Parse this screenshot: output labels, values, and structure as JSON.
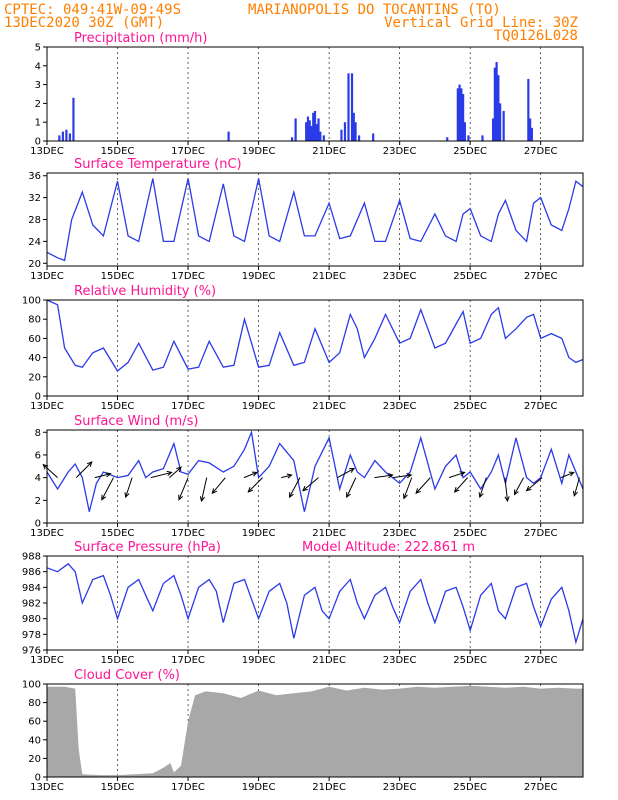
{
  "header": {
    "line1_left": "CPTEC:   049:41W-09:49S",
    "line1_right": "MARIANOPOLIS DO TOCANTINS (TO)",
    "line2_left": "13DEC2020 30Z (GMT)",
    "line2_right": "Vertical Grid Line: 30Z",
    "line3_right": "TQ0126L028",
    "text_color": "#ff7f00"
  },
  "colors": {
    "series": "#2b3be8",
    "cloud": "#a8a8a8",
    "title": "#ff1493"
  },
  "chart_data": [
    {
      "type": "bar",
      "title": "Precipitation (mm/h)",
      "ylim": [
        0,
        5
      ],
      "yticks": [
        "0",
        "1",
        "2",
        "3",
        "4",
        "5"
      ],
      "x_labels": [
        "13DEC",
        "15DEC",
        "17DEC",
        "19DEC",
        "21DEC",
        "23DEC",
        "25DEC",
        "27DEC"
      ],
      "x_domain_days": [
        0,
        15.2
      ],
      "x": [
        0.35,
        0.45,
        0.55,
        0.65,
        0.75,
        5.15,
        6.95,
        7.05,
        7.35,
        7.4,
        7.45,
        7.5,
        7.55,
        7.6,
        7.65,
        7.7,
        7.75,
        7.85,
        8.35,
        8.45,
        8.55,
        8.65,
        8.7,
        8.75,
        8.85,
        9.25,
        11.35,
        11.65,
        11.7,
        11.75,
        11.8,
        11.85,
        11.95,
        12.35,
        12.65,
        12.7,
        12.75,
        12.8,
        12.85,
        12.95,
        13.65,
        13.7,
        13.75
      ],
      "values": [
        0.3,
        0.5,
        0.6,
        0.4,
        2.3,
        0.5,
        0.2,
        1.2,
        1.0,
        1.3,
        1.1,
        0.8,
        1.5,
        1.6,
        0.9,
        1.2,
        0.5,
        0.3,
        0.6,
        1.0,
        3.6,
        3.6,
        1.5,
        1.0,
        0.3,
        0.4,
        0.2,
        2.8,
        3.0,
        2.8,
        2.5,
        1.0,
        0.3,
        0.3,
        1.2,
        3.9,
        4.2,
        3.5,
        2.0,
        1.6,
        3.3,
        1.2,
        0.7
      ]
    },
    {
      "type": "line",
      "title": "Surface Temperature (nC)",
      "ylim": [
        19.5,
        36.5
      ],
      "yticks": [
        "20",
        "24",
        "28",
        "32",
        "36"
      ],
      "x_labels": [
        "13DEC",
        "15DEC",
        "17DEC",
        "19DEC",
        "21DEC",
        "23DEC",
        "25DEC",
        "27DEC"
      ],
      "x_domain_days": [
        0,
        15.2
      ],
      "series": [
        {
          "x": [
            0,
            0.3,
            0.5,
            0.7,
            1.0,
            1.3,
            1.6,
            2.0,
            2.3,
            2.6,
            3.0,
            3.3,
            3.6,
            4.0,
            4.3,
            4.6,
            5.0,
            5.3,
            5.6,
            6.0,
            6.3,
            6.6,
            7.0,
            7.3,
            7.6,
            8.0,
            8.3,
            8.6,
            9.0,
            9.3,
            9.6,
            10.0,
            10.3,
            10.6,
            11.0,
            11.3,
            11.6,
            11.8,
            12.0,
            12.3,
            12.6,
            12.8,
            13.0,
            13.3,
            13.6,
            13.8,
            14.0,
            14.3,
            14.6,
            14.8,
            15.0,
            15.2
          ],
          "values": [
            22,
            21,
            20.5,
            28,
            33,
            27,
            25,
            35,
            25,
            24,
            35.5,
            24,
            24,
            35.5,
            25,
            24,
            34.5,
            25,
            24,
            35.5,
            25,
            24,
            33,
            25,
            25,
            31,
            24.5,
            25,
            31,
            24,
            24,
            31.5,
            24.5,
            24,
            29,
            25,
            24,
            29,
            30,
            25,
            24,
            29,
            31.5,
            26,
            24,
            31,
            32,
            27,
            26,
            30,
            35,
            34
          ]
        }
      ]
    },
    {
      "type": "line",
      "title": "Relative Humidity (%)",
      "ylim": [
        0,
        100
      ],
      "yticks": [
        "0",
        "20",
        "40",
        "60",
        "80",
        "100"
      ],
      "x_labels": [
        "13DEC",
        "15DEC",
        "17DEC",
        "19DEC",
        "21DEC",
        "23DEC",
        "25DEC",
        "27DEC"
      ],
      "x_domain_days": [
        0,
        15.2
      ],
      "series": [
        {
          "x": [
            0,
            0.3,
            0.5,
            0.8,
            1.0,
            1.3,
            1.6,
            2.0,
            2.3,
            2.6,
            3.0,
            3.3,
            3.6,
            4.0,
            4.3,
            4.6,
            5.0,
            5.3,
            5.6,
            6.0,
            6.3,
            6.6,
            7.0,
            7.3,
            7.6,
            8.0,
            8.3,
            8.6,
            8.8,
            9.0,
            9.3,
            9.6,
            10.0,
            10.3,
            10.6,
            11.0,
            11.3,
            11.6,
            11.8,
            12.0,
            12.3,
            12.6,
            12.8,
            13.0,
            13.3,
            13.6,
            13.8,
            14.0,
            14.3,
            14.6,
            14.8,
            15.0,
            15.2
          ],
          "values": [
            100,
            95,
            50,
            32,
            30,
            45,
            50,
            26,
            35,
            55,
            27,
            30,
            57,
            28,
            30,
            57,
            30,
            32,
            80,
            30,
            32,
            66,
            32,
            35,
            70,
            35,
            45,
            85,
            70,
            40,
            60,
            85,
            55,
            60,
            90,
            50,
            55,
            75,
            88,
            55,
            60,
            85,
            92,
            60,
            70,
            82,
            85,
            60,
            65,
            60,
            40,
            35,
            38
          ]
        }
      ]
    },
    {
      "type": "line",
      "title": "Surface Wind (m/s)",
      "ylim": [
        0,
        8.2
      ],
      "yticks": [
        "0",
        "2",
        "4",
        "6",
        "8"
      ],
      "x_labels": [
        "13DEC",
        "15DEC",
        "17DEC",
        "19DEC",
        "21DEC",
        "23DEC",
        "25DEC",
        "27DEC"
      ],
      "x_domain_days": [
        0,
        15.2
      ],
      "series": [
        {
          "x": [
            0,
            0.3,
            0.6,
            0.8,
            1.0,
            1.2,
            1.4,
            1.6,
            2.0,
            2.3,
            2.6,
            2.8,
            3.0,
            3.3,
            3.6,
            3.8,
            4.0,
            4.3,
            4.6,
            5.0,
            5.3,
            5.6,
            5.8,
            6.0,
            6.3,
            6.6,
            7.0,
            7.3,
            7.6,
            8.0,
            8.3,
            8.6,
            8.8,
            9.0,
            9.3,
            9.6,
            10.0,
            10.3,
            10.6,
            11.0,
            11.3,
            11.6,
            11.8,
            12.0,
            12.3,
            12.6,
            12.8,
            13.0,
            13.3,
            13.6,
            13.8,
            14.0,
            14.3,
            14.6,
            14.8,
            15.0,
            15.2
          ],
          "values": [
            4.5,
            3.0,
            4.5,
            5.2,
            4.0,
            1.0,
            3.5,
            4.5,
            4.0,
            4.2,
            5.5,
            4.0,
            4.5,
            4.8,
            7.0,
            4.5,
            4.3,
            5.5,
            5.3,
            4.5,
            5.0,
            6.5,
            8.0,
            4.0,
            5.0,
            7.0,
            5.5,
            1.0,
            5.0,
            7.5,
            3.0,
            6.0,
            4.5,
            4.0,
            5.5,
            4.5,
            3.5,
            4.5,
            7.5,
            3.0,
            5.0,
            6.0,
            4.0,
            4.5,
            3.0,
            4.5,
            6.0,
            3.5,
            7.5,
            4.0,
            3.5,
            4.0,
            6.5,
            3.5,
            6.0,
            4.5,
            3.0
          ]
        }
      ],
      "wind_vectors_uv": [
        [
          -0.55,
          0.5
        ],
        [
          0.6,
          0.6
        ],
        [
          0.6,
          0.15
        ],
        [
          -0.45,
          -0.85
        ],
        [
          -0.25,
          -0.75
        ],
        [
          0.8,
          0.2
        ],
        [
          0.45,
          0.4
        ],
        [
          -0.35,
          -0.85
        ],
        [
          -0.2,
          -0.9
        ],
        [
          -0.5,
          -0.6
        ],
        [
          0.5,
          0.2
        ],
        [
          -0.55,
          -0.55
        ],
        [
          0.4,
          0.1
        ],
        [
          -0.4,
          -0.75
        ],
        [
          -0.6,
          -0.5
        ],
        [
          0.65,
          0.35
        ],
        [
          -0.35,
          -0.75
        ],
        [
          0.7,
          0.1
        ],
        [
          0.7,
          0.1
        ],
        [
          -0.3,
          -0.8
        ],
        [
          -0.55,
          -0.6
        ],
        [
          0.6,
          0.2
        ],
        [
          -0.5,
          -0.55
        ],
        [
          -0.25,
          -0.75
        ],
        [
          0.1,
          -0.9
        ],
        [
          -0.35,
          -0.65
        ],
        [
          -0.6,
          -0.5
        ],
        [
          0.5,
          0.2
        ],
        [
          -0.2,
          -0.7
        ]
      ]
    },
    {
      "type": "line",
      "title": "Surface Pressure (hPa)",
      "subtitle": "Model Altitude: 222.861 m",
      "ylim": [
        976,
        988
      ],
      "yticks": [
        "976",
        "978",
        "980",
        "982",
        "984",
        "986",
        "988"
      ],
      "x_labels": [
        "13DEC",
        "15DEC",
        "17DEC",
        "19DEC",
        "21DEC",
        "23DEC",
        "25DEC",
        "27DEC"
      ],
      "x_domain_days": [
        0,
        15.2
      ],
      "series": [
        {
          "x": [
            0,
            0.3,
            0.6,
            0.8,
            1.0,
            1.3,
            1.6,
            1.8,
            2.0,
            2.3,
            2.6,
            2.8,
            3.0,
            3.3,
            3.6,
            3.8,
            4.0,
            4.3,
            4.6,
            4.8,
            5.0,
            5.3,
            5.6,
            5.8,
            6.0,
            6.3,
            6.6,
            6.8,
            7.0,
            7.3,
            7.6,
            7.8,
            8.0,
            8.3,
            8.6,
            8.8,
            9.0,
            9.3,
            9.6,
            9.8,
            10.0,
            10.3,
            10.6,
            10.8,
            11.0,
            11.3,
            11.6,
            11.8,
            12.0,
            12.3,
            12.6,
            12.8,
            13.0,
            13.3,
            13.6,
            13.8,
            14.0,
            14.3,
            14.6,
            14.8,
            15.0,
            15.2
          ],
          "values": [
            986.5,
            986,
            987,
            986,
            982,
            985,
            985.5,
            983,
            980,
            984,
            985,
            983,
            981,
            984.5,
            985.5,
            983,
            980,
            984,
            985,
            983.5,
            979.5,
            984.5,
            985,
            982.5,
            980,
            983.5,
            984.5,
            982,
            977.5,
            983,
            984,
            981,
            980,
            983.5,
            985,
            982,
            980,
            983,
            984,
            981.5,
            979.5,
            983.5,
            985,
            982,
            979.5,
            983.5,
            984,
            981.5,
            978.5,
            983,
            984.5,
            981,
            980,
            984,
            984.5,
            981.5,
            979,
            982.5,
            984,
            981,
            977,
            980
          ]
        }
      ]
    },
    {
      "type": "area",
      "title": "Cloud Cover (%)",
      "ylim": [
        0,
        100
      ],
      "yticks": [
        "0",
        "20",
        "40",
        "60",
        "80",
        "100"
      ],
      "x_labels": [
        "13DEC",
        "15DEC",
        "17DEC",
        "19DEC",
        "21DEC",
        "23DEC",
        "25DEC",
        "27DEC"
      ],
      "x_domain_days": [
        0,
        15.2
      ],
      "series": [
        {
          "x": [
            0,
            0.5,
            0.8,
            0.9,
            1.0,
            1.5,
            2.0,
            2.5,
            3.0,
            3.3,
            3.5,
            3.6,
            3.8,
            4.0,
            4.2,
            4.5,
            5.0,
            5.5,
            6.0,
            6.5,
            7.0,
            7.5,
            8.0,
            8.5,
            9.0,
            9.5,
            10.0,
            10.5,
            11.0,
            11.5,
            12.0,
            12.5,
            13.0,
            13.5,
            14.0,
            14.5,
            15.0,
            15.2
          ],
          "values": [
            97,
            97,
            95,
            30,
            3,
            2,
            2,
            3,
            4,
            10,
            15,
            5,
            12,
            60,
            88,
            92,
            90,
            85,
            93,
            88,
            90,
            92,
            97,
            93,
            96,
            94,
            95,
            97,
            96,
            97,
            98,
            97,
            96,
            97,
            95,
            96,
            95,
            95
          ]
        }
      ]
    }
  ]
}
